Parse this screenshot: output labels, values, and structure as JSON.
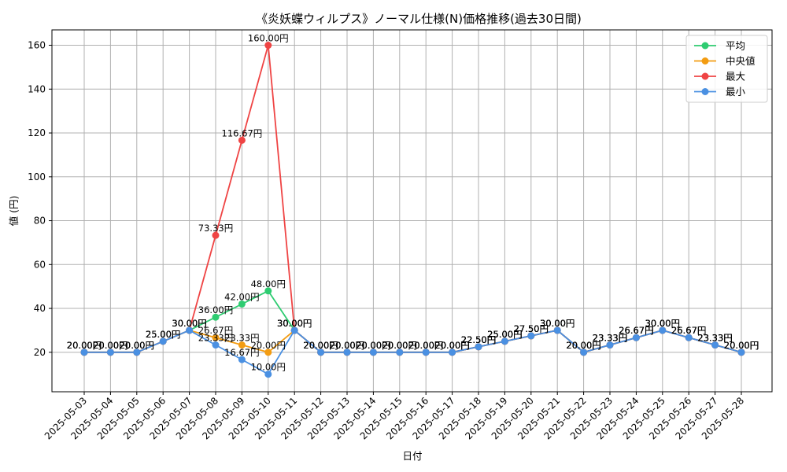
{
  "chart_data": {
    "type": "line",
    "title": "《炎妖蝶ウィルプス》ノーマル仕様(N)価格推移(過去30日間)",
    "xlabel": "日付",
    "ylabel": "値 (円)",
    "ylim": [
      2,
      167
    ],
    "yticks": [
      20,
      40,
      60,
      80,
      100,
      120,
      140,
      160
    ],
    "grid": true,
    "legend_position": "top-right",
    "label_suffix": "円",
    "categories": [
      "2025-05-03",
      "2025-05-04",
      "2025-05-05",
      "2025-05-06",
      "2025-05-07",
      "2025-05-08",
      "2025-05-09",
      "2025-05-10",
      "2025-05-11",
      "2025-05-12",
      "2025-05-13",
      "2025-05-14",
      "2025-05-15",
      "2025-05-16",
      "2025-05-17",
      "2025-05-18",
      "2025-05-19",
      "2025-05-20",
      "2025-05-21",
      "2025-05-22",
      "2025-05-23",
      "2025-05-24",
      "2025-05-25",
      "2025-05-26",
      "2025-05-27",
      "2025-05-28"
    ],
    "series": [
      {
        "name": "平均",
        "color": "#2ecc71",
        "values": [
          20,
          20,
          20,
          25,
          30,
          36,
          42,
          48,
          30,
          20,
          20,
          20,
          20,
          20,
          20,
          22.5,
          25,
          27.5,
          30,
          20,
          23.33,
          26.67,
          30,
          26.67,
          23.33,
          20
        ]
      },
      {
        "name": "中央値",
        "color": "#f39c12",
        "values": [
          20,
          20,
          20,
          25,
          30,
          26.67,
          23.33,
          20,
          30,
          20,
          20,
          20,
          20,
          20,
          20,
          22.5,
          25,
          27.5,
          30,
          20,
          23.33,
          26.67,
          30,
          26.67,
          23.33,
          20
        ]
      },
      {
        "name": "最大",
        "color": "#ef4444",
        "values": [
          20,
          20,
          20,
          25,
          30,
          73.33,
          116.67,
          160,
          30,
          20,
          20,
          20,
          20,
          20,
          20,
          22.5,
          25,
          27.5,
          30,
          20,
          23.33,
          26.67,
          30,
          26.67,
          23.33,
          20
        ]
      },
      {
        "name": "最小",
        "color": "#4a90e2",
        "values": [
          20,
          20,
          20,
          25,
          30,
          23.33,
          16.67,
          10,
          30,
          20,
          20,
          20,
          20,
          20,
          20,
          22.5,
          25,
          27.5,
          30,
          20,
          23.33,
          26.67,
          30,
          26.67,
          23.33,
          20
        ]
      }
    ]
  }
}
